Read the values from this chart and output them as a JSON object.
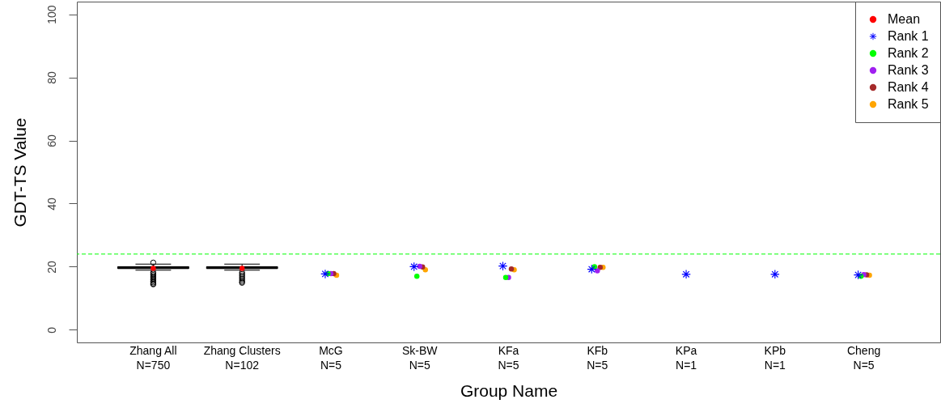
{
  "chart_data": {
    "type": "box",
    "xlabel": "Group Name",
    "ylabel": "GDT-TS Value",
    "categories": [
      "Zhang All\nN=750",
      "Zhang Clusters\nN=102",
      "McG\nN=5",
      "Sk-BW\nN=5",
      "KFa\nN=5",
      "KFb\nN=5",
      "KPa\nN=1",
      "KPb\nN=1",
      "Cheng\nN=5"
    ],
    "ylim": [
      -4,
      104
    ],
    "yticks": [
      0,
      20,
      40,
      60,
      80,
      100
    ],
    "grid": false,
    "legend": "top right",
    "ref_lines": [
      {
        "axis": "y",
        "value": 24,
        "color": "#00ff00",
        "line_style": "dashed"
      }
    ],
    "series": [
      {
        "color": "#000000",
        "boxes": [
          {
            "low": 18.9,
            "q1": 19.4,
            "median": 19.7,
            "q3": 20.0,
            "high": 20.8,
            "outliers": [
              21.3,
              18.2,
              17.8,
              17.4,
              17.0,
              16.6,
              16.2,
              15.8,
              15.4,
              15.0,
              14.6,
              14.4
            ]
          },
          {
            "low": 18.9,
            "q1": 19.4,
            "median": 19.7,
            "q3": 20.0,
            "high": 20.8,
            "outliers": [
              18.2,
              17.7,
              17.2,
              16.7,
              16.2,
              15.7,
              15.2,
              14.9
            ]
          },
          null,
          null,
          null,
          null,
          null,
          null,
          null
        ]
      },
      {
        "name": "Mean",
        "type": "scatter",
        "color": "#ff0000",
        "marker": "circle",
        "values": [
          19.5,
          19.5,
          null,
          null,
          null,
          null,
          null,
          null,
          null
        ]
      },
      {
        "name": "Rank 1",
        "type": "scatter",
        "color": "#0000ff",
        "marker": "star",
        "values": [
          null,
          null,
          17.7,
          20.0,
          20.2,
          19.2,
          17.6,
          17.6,
          17.4
        ]
      },
      {
        "name": "Rank 2",
        "type": "scatter",
        "color": "#00ff00",
        "marker": "circle",
        "values": [
          null,
          null,
          17.8,
          17.0,
          16.6,
          20.0,
          null,
          null,
          17.0
        ]
      },
      {
        "name": "Rank 3",
        "type": "scatter",
        "color": "#a020f0",
        "marker": "circle",
        "values": [
          null,
          null,
          17.8,
          20.1,
          16.6,
          18.7,
          null,
          null,
          17.5
        ]
      },
      {
        "name": "Rank 4",
        "type": "scatter",
        "color": "#a52a2a",
        "marker": "circle",
        "values": [
          null,
          null,
          17.8,
          19.9,
          19.3,
          19.8,
          null,
          null,
          17.4
        ]
      },
      {
        "name": "Rank 5",
        "type": "scatter",
        "color": "#ffa500",
        "marker": "circle",
        "values": [
          null,
          null,
          17.3,
          19.0,
          19.0,
          19.8,
          null,
          null,
          17.3
        ]
      }
    ]
  }
}
